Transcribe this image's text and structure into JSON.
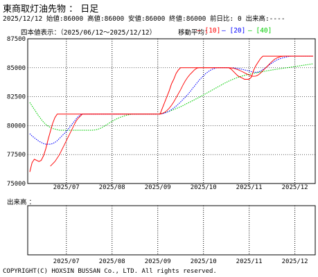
{
  "header": {
    "title": "東商取灯油先物 ： 日足",
    "quote_line": "2025/12/12 始値:86000 高値:86000 安値:86000 終値:86000 前日比: 0 出来高:----",
    "chart_label": "四本値表示：（2025/06/12～2025/12/12）",
    "ma_label": "移動平均：",
    "ma10_label": "[10]",
    "ma20_label": "[20]",
    "ma40_label": "[40]"
  },
  "volume_panel": {
    "title": "出来高 ："
  },
  "footer": {
    "copyright": "COPYRIGHT(C) HOXSIN BUSSAN Co., LTD. All rights reserved."
  },
  "colors": {
    "price": "#ff0000",
    "ma10": "#ff0000",
    "ma20": "#0000ff",
    "ma40": "#00cc00",
    "grid": "#000000"
  },
  "chart_data": {
    "type": "line",
    "x": [
      "2025/06/12",
      "2025/06/13",
      "2025/06/16",
      "2025/06/17",
      "2025/06/18",
      "2025/06/19",
      "2025/06/20",
      "2025/06/23",
      "2025/06/24",
      "2025/06/25",
      "2025/06/26",
      "2025/06/27",
      "2025/06/30",
      "2025/07/01",
      "2025/07/02",
      "2025/07/03",
      "2025/07/04",
      "2025/07/07",
      "2025/07/08",
      "2025/07/09",
      "2025/07/10",
      "2025/07/11",
      "2025/07/14",
      "2025/07/15",
      "2025/07/16",
      "2025/07/17",
      "2025/07/18",
      "2025/07/22",
      "2025/07/23",
      "2025/07/24",
      "2025/07/25",
      "2025/07/28",
      "2025/07/29",
      "2025/07/30",
      "2025/07/31",
      "2025/08/01",
      "2025/08/04",
      "2025/08/05",
      "2025/08/06",
      "2025/08/07",
      "2025/08/08",
      "2025/08/12",
      "2025/08/13",
      "2025/08/14",
      "2025/08/15",
      "2025/08/18",
      "2025/08/19",
      "2025/08/20",
      "2025/08/21",
      "2025/08/22",
      "2025/08/25",
      "2025/08/26",
      "2025/08/27",
      "2025/08/28",
      "2025/08/29",
      "2025/09/01",
      "2025/09/02",
      "2025/09/03",
      "2025/09/04",
      "2025/09/05",
      "2025/09/08",
      "2025/09/09",
      "2025/09/10",
      "2025/09/11",
      "2025/09/12",
      "2025/09/16",
      "2025/09/17",
      "2025/09/18",
      "2025/09/19",
      "2025/09/22",
      "2025/09/24",
      "2025/09/25",
      "2025/09/26",
      "2025/09/29",
      "2025/09/30",
      "2025/10/01",
      "2025/10/02",
      "2025/10/03",
      "2025/10/06",
      "2025/10/07",
      "2025/10/08",
      "2025/10/09",
      "2025/10/10",
      "2025/10/14",
      "2025/10/15",
      "2025/10/16",
      "2025/10/17",
      "2025/10/20",
      "2025/10/21",
      "2025/10/22",
      "2025/10/23",
      "2025/10/24",
      "2025/10/27",
      "2025/10/28",
      "2025/10/29",
      "2025/10/30",
      "2025/10/31",
      "2025/11/04",
      "2025/11/05",
      "2025/11/06",
      "2025/11/07",
      "2025/11/10",
      "2025/11/11",
      "2025/11/12",
      "2025/11/13",
      "2025/11/14",
      "2025/11/17",
      "2025/11/18",
      "2025/11/19",
      "2025/11/20",
      "2025/11/21",
      "2025/11/25",
      "2025/11/26",
      "2025/11/27",
      "2025/11/28",
      "2025/12/01",
      "2025/12/02",
      "2025/12/03",
      "2025/12/04",
      "2025/12/05",
      "2025/12/08",
      "2025/12/09",
      "2025/12/10",
      "2025/12/11",
      "2025/12/12"
    ],
    "x_ticks": [
      "2025/07",
      "2025/08",
      "2025/09",
      "2025/10",
      "2025/11",
      "2025/12"
    ],
    "ylim": [
      75000,
      87500
    ],
    "y_ticks": [
      75000,
      77500,
      80000,
      82500,
      85000,
      87500
    ],
    "vgrid_every": 20,
    "grid": true,
    "series": [
      {
        "name": "price_close",
        "color": "#ff0000",
        "values": [
          76000,
          76800,
          77100,
          77000,
          76900,
          77000,
          77400,
          78000,
          78800,
          79500,
          80200,
          80700,
          81000,
          81000,
          81000,
          81000,
          81000,
          81000,
          81000,
          81000,
          81000,
          81000,
          81000,
          81000,
          81000,
          81000,
          81000,
          81000,
          81000,
          81000,
          81000,
          81000,
          81000,
          81000,
          81000,
          81000,
          81000,
          81000,
          81000,
          81000,
          81000,
          81000,
          81000,
          81000,
          81000,
          81000,
          81000,
          81000,
          81000,
          81000,
          81000,
          81000,
          81000,
          81000,
          81000,
          81000,
          81000,
          81000,
          81500,
          82000,
          82500,
          83000,
          83600,
          84000,
          84500,
          84800,
          85000,
          85000,
          85000,
          85000,
          85000,
          85000,
          85000,
          85000,
          85000,
          85000,
          85000,
          85000,
          85000,
          85000,
          85000,
          85000,
          85000,
          85000,
          85000,
          85000,
          85000,
          85000,
          84900,
          84700,
          84500,
          84300,
          84200,
          84100,
          84000,
          84000,
          84000,
          84200,
          84800,
          85200,
          85500,
          85800,
          86000,
          86000,
          86000,
          86000,
          86000,
          86000,
          86000,
          86000,
          86000,
          86000,
          86000,
          86000,
          86000,
          86000,
          86000,
          86000,
          86000,
          86000,
          86000,
          86000,
          86000,
          86000,
          86000
        ]
      },
      {
        "name": "ma10",
        "color": "#ff0000",
        "values": [
          null,
          null,
          null,
          null,
          null,
          null,
          null,
          null,
          null,
          76500,
          76700,
          76900,
          77200,
          77500,
          77900,
          78300,
          78700,
          79100,
          79500,
          79900,
          80300,
          80600,
          80800,
          81000,
          81000,
          81000,
          81000,
          81000,
          81000,
          81000,
          81000,
          81000,
          81000,
          81000,
          81000,
          81000,
          81000,
          81000,
          81000,
          81000,
          81000,
          81000,
          81000,
          81000,
          81000,
          81000,
          81000,
          81000,
          81000,
          81000,
          81000,
          81000,
          81000,
          81000,
          81000,
          81000,
          81000,
          81000,
          81050,
          81150,
          81300,
          81500,
          81750,
          82050,
          82400,
          82750,
          83100,
          83500,
          83850,
          84150,
          84400,
          84600,
          84800,
          84950,
          85000,
          85000,
          85000,
          85000,
          85000,
          85000,
          85000,
          85000,
          85000,
          85000,
          85000,
          85000,
          85000,
          85000,
          84990,
          84960,
          84900,
          84830,
          84750,
          84660,
          84560,
          84460,
          84360,
          84280,
          84260,
          84280,
          84380,
          84540,
          84740,
          84940,
          85140,
          85340,
          85540,
          85710,
          85830,
          85910,
          85960,
          85990,
          86000,
          86000,
          86000,
          86000,
          86000,
          86000,
          86000,
          86000,
          86000,
          86000,
          86000,
          86000,
          86000
        ]
      },
      {
        "name": "ma20",
        "color": "#0000ff",
        "values": [
          79300,
          79100,
          78950,
          78800,
          78650,
          78550,
          78450,
          78400,
          78400,
          78400,
          78450,
          78550,
          78700,
          78900,
          79100,
          79300,
          79500,
          79750,
          80000,
          80250,
          80500,
          80750,
          80900,
          81000,
          81000,
          81000,
          81000,
          81000,
          81000,
          81000,
          81000,
          81000,
          81000,
          81000,
          81000,
          81000,
          81000,
          81000,
          81000,
          81000,
          81000,
          81000,
          81000,
          81000,
          81000,
          81000,
          81000,
          81000,
          81000,
          81000,
          81000,
          81000,
          81000,
          81000,
          81000,
          81000,
          81000,
          81000,
          81020,
          81080,
          81150,
          81250,
          81380,
          81520,
          81680,
          81850,
          82050,
          82250,
          82450,
          82650,
          82900,
          83150,
          83400,
          83650,
          83900,
          84100,
          84300,
          84500,
          84650,
          84780,
          84880,
          84950,
          85000,
          85000,
          85000,
          85000,
          85000,
          85000,
          84990,
          84980,
          84960,
          84930,
          84900,
          84860,
          84810,
          84760,
          84710,
          84660,
          84620,
          84600,
          84630,
          84710,
          84830,
          84970,
          85120,
          85270,
          85410,
          85540,
          85650,
          85740,
          85810,
          85870,
          85920,
          85960,
          85990,
          86000,
          86000,
          86000,
          86000,
          86000,
          86000,
          86000,
          86000,
          86000,
          86000
        ]
      },
      {
        "name": "ma40",
        "color": "#00cc00",
        "values": [
          82000,
          81700,
          81400,
          81100,
          80800,
          80550,
          80300,
          80100,
          79950,
          79850,
          79750,
          79700,
          79650,
          79600,
          79600,
          79600,
          79600,
          79600,
          79600,
          79600,
          79600,
          79600,
          79600,
          79600,
          79600,
          79600,
          79600,
          79600,
          79610,
          79640,
          79700,
          79780,
          79880,
          80000,
          80120,
          80250,
          80370,
          80480,
          80580,
          80670,
          80750,
          80820,
          80880,
          80930,
          80970,
          81000,
          81000,
          81000,
          81000,
          81000,
          81000,
          81000,
          81000,
          81000,
          81000,
          81000,
          81000,
          81020,
          81060,
          81110,
          81170,
          81240,
          81310,
          81390,
          81470,
          81550,
          81640,
          81730,
          81830,
          81930,
          82030,
          82130,
          82230,
          82330,
          82430,
          82540,
          82650,
          82760,
          82870,
          82980,
          83090,
          83200,
          83310,
          83420,
          83530,
          83640,
          83740,
          83840,
          83930,
          84010,
          84090,
          84160,
          84230,
          84290,
          84340,
          84390,
          84430,
          84470,
          84510,
          84550,
          84590,
          84630,
          84670,
          84700,
          84740,
          84770,
          84800,
          84840,
          84870,
          84900,
          84930,
          84960,
          84990,
          85010,
          85040,
          85070,
          85100,
          85130,
          85160,
          85190,
          85220,
          85250,
          85280,
          85310,
          85340
        ]
      }
    ]
  }
}
